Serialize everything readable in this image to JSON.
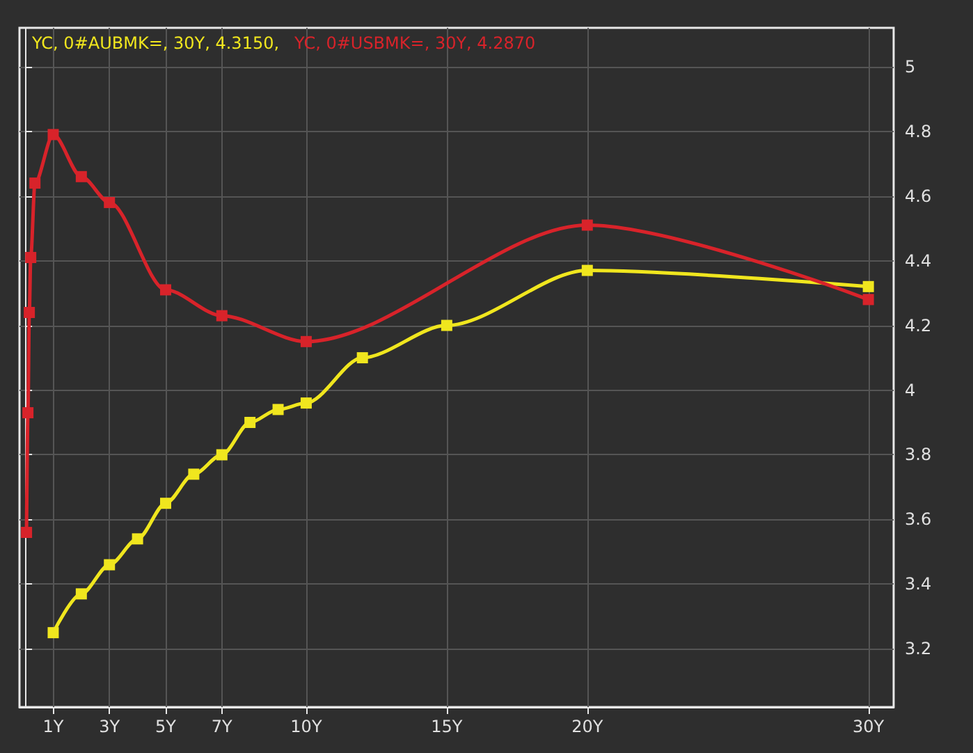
{
  "chart_data": {
    "type": "line",
    "xlim": [
      -0.2,
      30.9
    ],
    "xticks": [
      {
        "value": 1,
        "label": "1Y"
      },
      {
        "value": 3,
        "label": "3Y"
      },
      {
        "value": 5,
        "label": "5Y"
      },
      {
        "value": 7,
        "label": "7Y"
      },
      {
        "value": 10,
        "label": "10Y"
      },
      {
        "value": 15,
        "label": "15Y"
      },
      {
        "value": 20,
        "label": "20Y"
      },
      {
        "value": 30,
        "label": "30Y"
      }
    ],
    "ylim": [
      3.02,
      5.12
    ],
    "yticks": [
      3.2,
      3.4,
      3.6,
      3.8,
      4,
      4.2,
      4.4,
      4.6,
      4.8,
      5
    ],
    "grid": true,
    "legend": "top left",
    "marker": "square",
    "line_style": "solid",
    "series": [
      {
        "name": "YC, 0#AUBMK=, 30Y, 4.3150,",
        "color": "#f0e61e",
        "x": [
          1,
          2,
          3,
          4,
          5,
          6,
          7,
          8,
          9,
          10,
          12,
          15,
          20,
          30
        ],
        "values": [
          3.25,
          3.37,
          3.46,
          3.54,
          3.65,
          3.74,
          3.8,
          3.9,
          3.94,
          3.96,
          4.1,
          4.2,
          4.37,
          4.32
        ]
      },
      {
        "name": "YC, 0#USBMK=, 30Y, 4.2870",
        "color": "#d8232a",
        "x": [
          0.05,
          0.1,
          0.15,
          0.2,
          0.35,
          1,
          2,
          3,
          5,
          7,
          10,
          20,
          30
        ],
        "values": [
          3.56,
          3.93,
          4.24,
          4.41,
          4.64,
          4.79,
          4.66,
          4.58,
          4.31,
          4.23,
          4.15,
          4.51,
          4.28
        ]
      }
    ]
  }
}
